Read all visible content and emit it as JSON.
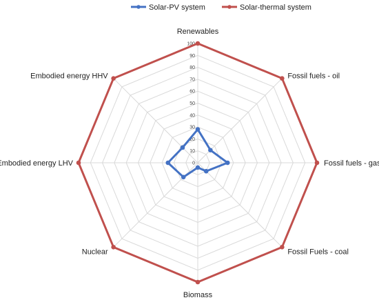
{
  "chart_data": {
    "type": "radar",
    "categories": [
      "Renewables",
      "Fossil fuels - oil",
      "Fossil fuels  - gas",
      "Fossil Fuels - coal",
      "Biomass",
      "Nuclear",
      "Embodied energy LHV",
      "Embodied energy HHV"
    ],
    "series": [
      {
        "name": "Solar-PV system",
        "values": [
          28,
          15,
          25,
          10,
          4,
          17,
          25,
          18
        ],
        "color": "#4472C4"
      },
      {
        "name": "Solar-thermal system",
        "values": [
          100,
          100,
          100,
          100,
          100,
          100,
          100,
          100
        ],
        "color": "#C0504D"
      }
    ],
    "ticks": [
      "0",
      "10",
      "20",
      "30",
      "40",
      "50",
      "60",
      "70",
      "80",
      "90",
      "100"
    ],
    "rlim": [
      0,
      100
    ],
    "grid": true,
    "legend_position": "top"
  }
}
